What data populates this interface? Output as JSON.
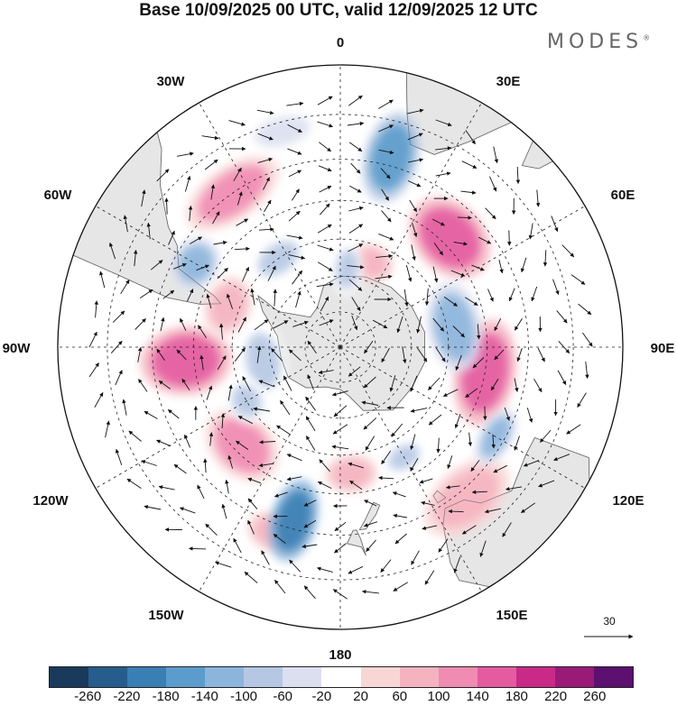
{
  "title": "Base 10/09/2025 00 UTC, valid 12/09/2025 12 UTC",
  "brand": "MODES",
  "brand_mark": "®",
  "projection": "south-polar-stereographic",
  "longitude_labels": {
    "lon_0": "0",
    "lon_30e": "30E",
    "lon_60e": "60E",
    "lon_90e": "90E",
    "lon_120e": "120E",
    "lon_150e": "150E",
    "lon_180": "180",
    "lon_150w": "150W",
    "lon_120w": "120W",
    "lon_90w": "90W",
    "lon_60w": "60W",
    "lon_30w": "30W"
  },
  "colorbar": {
    "colors": [
      "#1a3a5c",
      "#275d8c",
      "#3a7fb4",
      "#5b9ccc",
      "#8cb5dc",
      "#b5c7e3",
      "#dcdff0",
      "#ffffff",
      "#f9d6d6",
      "#f5b3c0",
      "#f08bb2",
      "#e45ba0",
      "#c92a88",
      "#9a1a78",
      "#5c1070"
    ],
    "tick_labels": [
      "-260",
      "-220",
      "-180",
      "-140",
      "-100",
      "-60",
      "-20",
      "20",
      "60",
      "100",
      "140",
      "180",
      "220",
      "260"
    ]
  },
  "reference_vector": {
    "value": "30"
  },
  "anomaly_blobs": [
    {
      "lon": 100,
      "lat": -50,
      "value": 170,
      "rx": 0.14,
      "ry": 0.08
    },
    {
      "lon": 45,
      "lat": -48,
      "value": 150,
      "rx": 0.12,
      "ry": 0.09
    },
    {
      "lon": -95,
      "lat": -48,
      "value": 140,
      "rx": 0.09,
      "ry": 0.12
    },
    {
      "lon": -135,
      "lat": -52,
      "value": 130,
      "rx": 0.11,
      "ry": 0.08
    },
    {
      "lon": -35,
      "lat": -40,
      "value": 100,
      "rx": 0.14,
      "ry": 0.07
    },
    {
      "lon": 140,
      "lat": -38,
      "value": 90,
      "rx": 0.13,
      "ry": 0.08
    },
    {
      "lon": -70,
      "lat": -57,
      "value": 80,
      "rx": 0.08,
      "ry": 0.06
    },
    {
      "lon": -160,
      "lat": -38,
      "value": 70,
      "rx": 0.07,
      "ry": 0.05
    },
    {
      "lon": 175,
      "lat": -55,
      "value": 70,
      "rx": 0.07,
      "ry": 0.05
    },
    {
      "lon": 20,
      "lat": -65,
      "value": 60,
      "rx": 0.06,
      "ry": 0.05
    },
    {
      "lon": 15,
      "lat": -38,
      "value": -150,
      "rx": 0.07,
      "ry": 0.12
    },
    {
      "lon": 80,
      "lat": -58,
      "value": -130,
      "rx": 0.12,
      "ry": 0.07
    },
    {
      "lon": -165,
      "lat": -42,
      "value": -200,
      "rx": 0.06,
      "ry": 0.11
    },
    {
      "lon": 120,
      "lat": -42,
      "value": -120,
      "rx": 0.08,
      "ry": 0.04
    },
    {
      "lon": -60,
      "lat": -45,
      "value": -120,
      "rx": 0.07,
      "ry": 0.06
    },
    {
      "lon": -100,
      "lat": -68,
      "value": -100,
      "rx": 0.1,
      "ry": 0.06
    },
    {
      "lon": -35,
      "lat": -60,
      "value": -90,
      "rx": 0.08,
      "ry": 0.05
    },
    {
      "lon": 5,
      "lat": -68,
      "value": -90,
      "rx": 0.04,
      "ry": 0.07
    },
    {
      "lon": -120,
      "lat": -60,
      "value": -80,
      "rx": 0.06,
      "ry": 0.05
    },
    {
      "lon": 150,
      "lat": -55,
      "value": -80,
      "rx": 0.06,
      "ry": 0.04
    },
    {
      "lon": -15,
      "lat": -32,
      "value": -60,
      "rx": 0.1,
      "ry": 0.05
    }
  ]
}
